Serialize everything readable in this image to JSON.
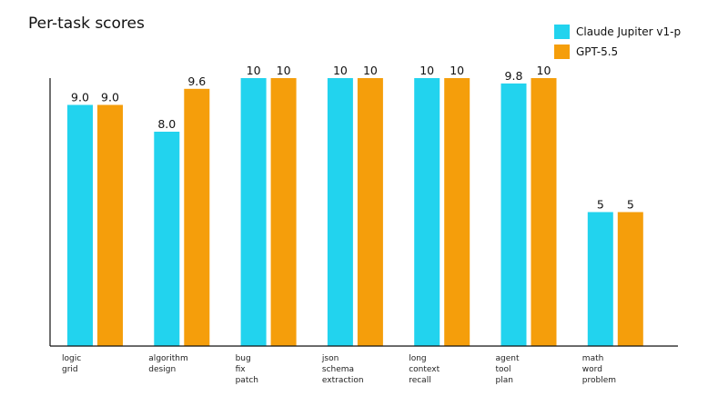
{
  "chart_data": {
    "type": "bar",
    "title": "Per-task scores",
    "xlabel": "",
    "ylabel": "",
    "ylim": [
      0,
      10
    ],
    "grid": false,
    "legend_position": "top-right",
    "categories": [
      [
        "logic",
        "grid"
      ],
      [
        "algorithm",
        "design"
      ],
      [
        "bug",
        "fix",
        "patch"
      ],
      [
        "json",
        "schema",
        "extraction"
      ],
      [
        "long",
        "context",
        "recall"
      ],
      [
        "agent",
        "tool",
        "plan"
      ],
      [
        "math",
        "word",
        "problem"
      ]
    ],
    "series": [
      {
        "name": "Claude Jupiter v1-p",
        "color": "#22d3ee",
        "values": [
          9.0,
          8.0,
          10,
          10,
          10,
          9.8,
          5
        ],
        "labels": [
          "9.0",
          "8.0",
          "10",
          "10",
          "10",
          "9.8",
          "5"
        ]
      },
      {
        "name": "GPT-5.5",
        "color": "#f59e0b",
        "values": [
          9.0,
          9.6,
          10,
          10,
          10,
          10,
          5
        ],
        "labels": [
          "9.0",
          "9.6",
          "10",
          "10",
          "10",
          "10",
          "5"
        ]
      }
    ]
  }
}
